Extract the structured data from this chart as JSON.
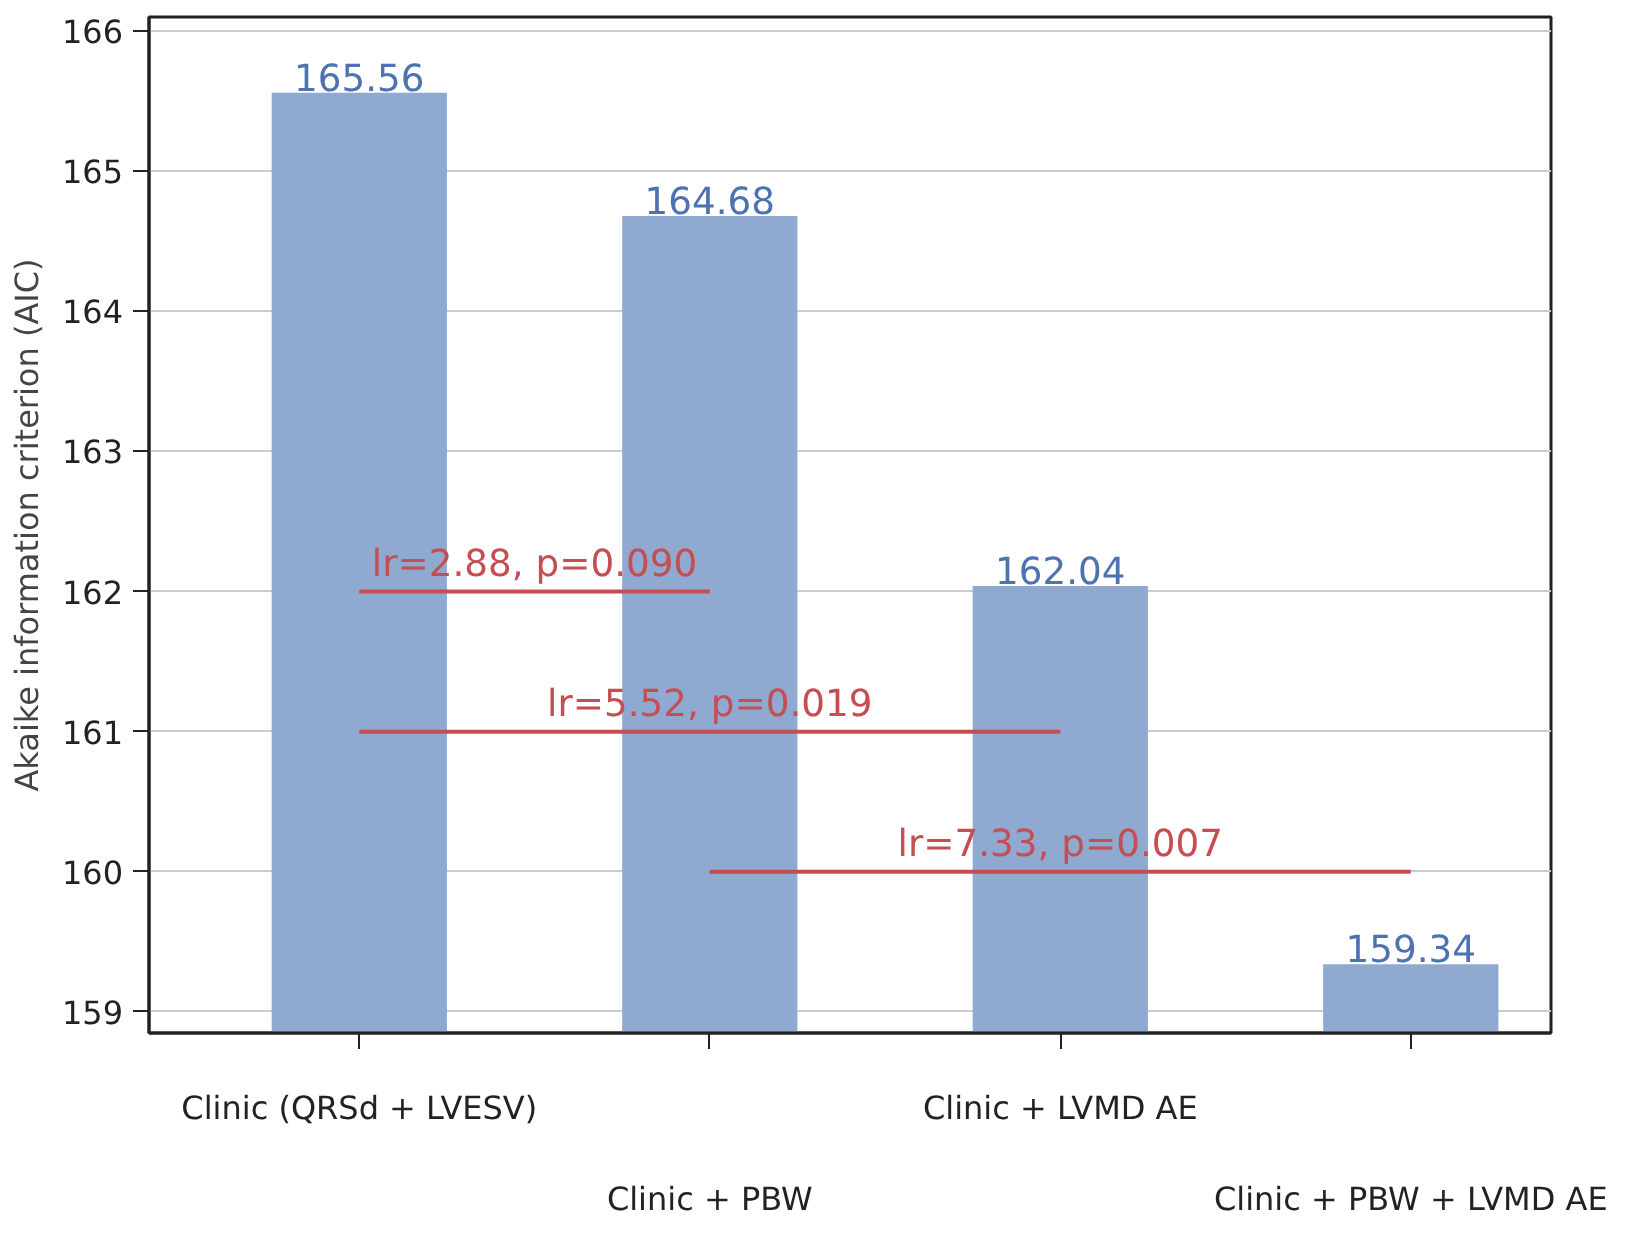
{
  "chart_data": {
    "type": "bar",
    "ylabel": "Akaike information criterion (AIC)",
    "categories": [
      "Clinic (QRSd + LVESV)",
      "Clinic + PBW",
      "Clinic + LVMD AE",
      "Clinic + PBW + LVMD AE"
    ],
    "series": [
      {
        "color": "#8fa9d0",
        "values": [
          165.56,
          164.68,
          162.04,
          159.34
        ],
        "value_labels": [
          "165.56",
          "164.68",
          "162.04",
          "159.34"
        ]
      },
      {
        "type": "line",
        "color": "#c44e52",
        "values": [
          162,
          162,
          null,
          null
        ]
      },
      {
        "type": "line",
        "color": "#c44e52",
        "values": [
          161,
          null,
          161,
          null
        ]
      },
      {
        "type": "line",
        "color": "#c44e52",
        "values": [
          null,
          160,
          null,
          160
        ]
      }
    ],
    "annotations": [
      "lr=2.88, p=0.090",
      "lr=5.52, p=0.019",
      "lr=7.33, p=0.007"
    ],
    "ylim": [
      158.85,
      166.1
    ],
    "yticks": [
      159,
      160,
      161,
      162,
      163,
      164,
      165,
      166
    ],
    "grid": "y"
  }
}
